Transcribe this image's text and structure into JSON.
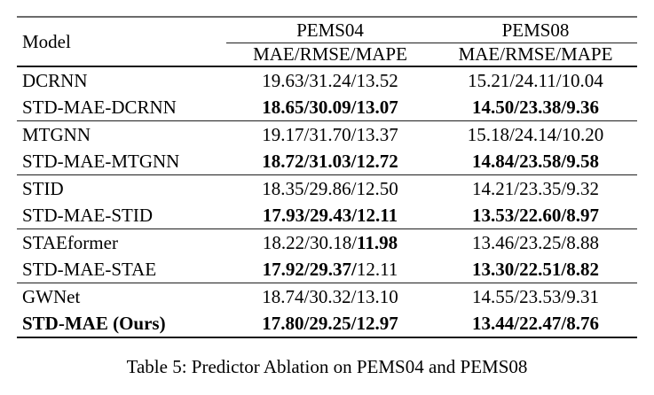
{
  "table": {
    "header": {
      "model_label": "Model",
      "group_labels": [
        "PEMS04",
        "PEMS08"
      ],
      "metric_labels": [
        "MAE/RMSE/MAPE",
        "MAE/RMSE/MAPE"
      ]
    },
    "rows": [
      {
        "model": "DCRNN",
        "model_bold": false,
        "group_start": false,
        "pems04": [
          {
            "text": "19.63/31.24/13.52",
            "bold": false
          }
        ],
        "pems08": [
          {
            "text": "15.21/24.11/10.04",
            "bold": false
          }
        ]
      },
      {
        "model": "STD-MAE-DCRNN",
        "model_bold": false,
        "group_start": false,
        "pems04": [
          {
            "text": "18.65/30.09/13.07",
            "bold": true
          }
        ],
        "pems08": [
          {
            "text": "14.50/23.38/9.36",
            "bold": true
          }
        ]
      },
      {
        "model": "MTGNN",
        "model_bold": false,
        "group_start": true,
        "pems04": [
          {
            "text": "19.17/31.70/13.37",
            "bold": false
          }
        ],
        "pems08": [
          {
            "text": "15.18/24.14/10.20",
            "bold": false
          }
        ]
      },
      {
        "model": "STD-MAE-MTGNN",
        "model_bold": false,
        "group_start": false,
        "pems04": [
          {
            "text": "18.72/31.03/12.72",
            "bold": true
          }
        ],
        "pems08": [
          {
            "text": "14.84/23.58/9.58",
            "bold": true
          }
        ]
      },
      {
        "model": "STID",
        "model_bold": false,
        "group_start": true,
        "pems04": [
          {
            "text": "18.35/29.86/12.50",
            "bold": false
          }
        ],
        "pems08": [
          {
            "text": "14.21/23.35/9.32",
            "bold": false
          }
        ]
      },
      {
        "model": "STD-MAE-STID",
        "model_bold": false,
        "group_start": false,
        "pems04": [
          {
            "text": "17.93/29.43/12.11",
            "bold": true
          }
        ],
        "pems08": [
          {
            "text": "13.53/22.60/8.97",
            "bold": true
          }
        ]
      },
      {
        "model": "STAEformer",
        "model_bold": false,
        "group_start": true,
        "pems04": [
          {
            "text": "18.22/30.18/",
            "bold": false
          },
          {
            "text": "11.98",
            "bold": true
          }
        ],
        "pems08": [
          {
            "text": "13.46/23.25/8.88",
            "bold": false
          }
        ]
      },
      {
        "model": "STD-MAE-STAE",
        "model_bold": false,
        "group_start": false,
        "pems04": [
          {
            "text": "17.92/29.37/",
            "bold": true
          },
          {
            "text": "12.11",
            "bold": false
          }
        ],
        "pems08": [
          {
            "text": "13.30/22.51/8.82",
            "bold": true
          }
        ]
      },
      {
        "model": "GWNet",
        "model_bold": false,
        "group_start": true,
        "pems04": [
          {
            "text": "18.74/30.32/13.10",
            "bold": false
          }
        ],
        "pems08": [
          {
            "text": "14.55/23.53/9.31",
            "bold": false
          }
        ]
      },
      {
        "model": "STD-MAE (Ours)",
        "model_bold": true,
        "group_start": false,
        "pems04": [
          {
            "text": "17.80/29.25/12.97",
            "bold": true
          }
        ],
        "pems08": [
          {
            "text": "13.44/22.47/8.76",
            "bold": true
          }
        ]
      }
    ]
  },
  "caption": "Table 5: Predictor Ablation on PEMS04 and PEMS08",
  "colors": {
    "background": "#ffffff",
    "text": "#000000",
    "top_rule": "#6b6b6b",
    "heavy_rule": "#121212",
    "light_rule": "#1e1e1e"
  }
}
